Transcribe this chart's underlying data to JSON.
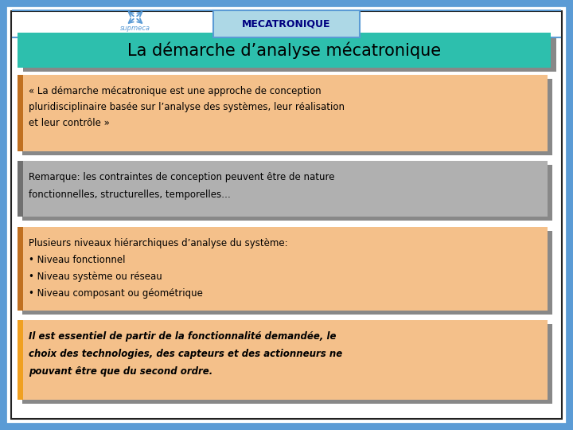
{
  "title_header": "MECATRONIQUE",
  "slide_title": "La démarche d’analyse mécatronique",
  "box1_lines": [
    "« La démarche mécatronique est une approche de conception",
    "pluridisciplinaire basée sur l’analyse des systèmes, leur réalisation",
    "et leur contrôle »"
  ],
  "box2_lines": [
    "Remarque: les contraintes de conception peuvent être de nature",
    "fonctionnelles, structurelles, temporelles…"
  ],
  "box3_lines": [
    "Plusieurs niveaux hiérarchiques d’analyse du système:",
    "• Niveau fonctionnel",
    "• Niveau système ou réseau",
    "• Niveau composant ou géométrique"
  ],
  "box4_lines": [
    "Il est essentiel de partir de la fonctionnalité demandée, le",
    "choix des technologies, des capteurs et des actionneurs ne",
    "pouvant être que du second ordre."
  ],
  "bg_color": "#ffffff",
  "outer_border_color": "#5b9bd5",
  "inner_border_color": "#222222",
  "header_bg": "#add8e6",
  "header_text_color": "#000080",
  "title_bg": "#2dbfad",
  "title_text_color": "#000000",
  "box1_bg": "#f4c08a",
  "box1_bar": "#c07020",
  "box1_text_color": "#000000",
  "box2_bg": "#b0b0b0",
  "box2_bar": "#707070",
  "box2_text_color": "#000000",
  "box3_bg": "#f4c08a",
  "box3_bar": "#c07020",
  "box3_text_color": "#000000",
  "box4_bg": "#f4c08a",
  "box4_bar": "#f0a020",
  "box4_text_color": "#000000",
  "shadow_color": "#888888",
  "shadow_alpha": 0.5,
  "supmeca_color": "#5b9bd5"
}
